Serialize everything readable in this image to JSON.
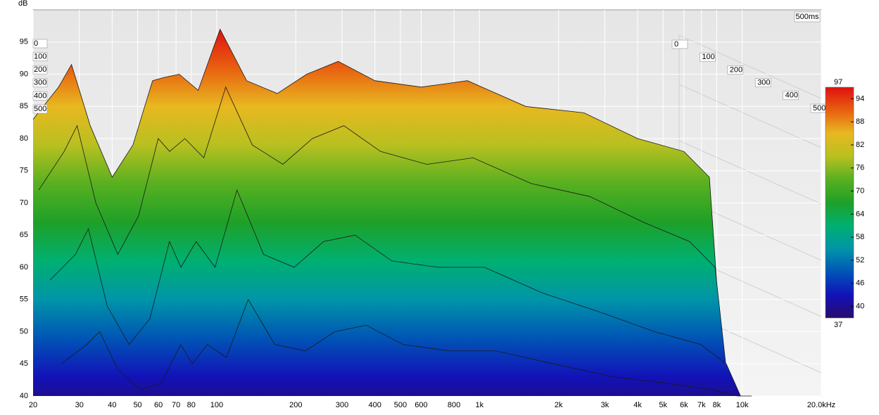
{
  "chart_data": {
    "type": "waterfall",
    "y_label": "dB",
    "depth_label": "500ms",
    "xlim": [
      20,
      20000
    ],
    "log_x": true,
    "xticks": [
      20,
      30,
      40,
      50,
      60,
      70,
      80,
      100,
      200,
      300,
      400,
      500,
      600,
      800,
      {
        "value": 1000,
        "label": "1k"
      },
      {
        "value": 2000,
        "label": "2k"
      },
      {
        "value": 3000,
        "label": "3k"
      },
      {
        "value": 4000,
        "label": "4k"
      },
      {
        "value": 5000,
        "label": "5k"
      },
      {
        "value": 6000,
        "label": "6k"
      },
      {
        "value": 7000,
        "label": "7k"
      },
      {
        "value": 8000,
        "label": "8k"
      },
      {
        "value": 10000,
        "label": "10k"
      },
      {
        "value": 20000,
        "label": "20.0kHz"
      }
    ],
    "ylim": [
      40,
      100
    ],
    "yticks": [
      40,
      45,
      50,
      55,
      60,
      65,
      70,
      75,
      80,
      85,
      90,
      95
    ],
    "zlim": [
      0,
      500
    ],
    "zticks": [
      0,
      100,
      200,
      300,
      400,
      500
    ],
    "grid": true,
    "x": [
      20,
      25,
      28,
      33,
      40,
      48,
      57,
      63,
      72,
      85,
      103,
      130,
      170,
      220,
      290,
      400,
      600,
      900,
      1500,
      2500,
      4000,
      6000,
      7500,
      8500
    ],
    "slices": [
      {
        "time": 0,
        "values": [
          83,
          88,
          91.5,
          82,
          74,
          79,
          89,
          89.5,
          90,
          87.5,
          97,
          89,
          87,
          90,
          92,
          89,
          88,
          89,
          85,
          84,
          80,
          78,
          74,
          42
        ]
      },
      {
        "time": 100,
        "values": [
          72,
          78,
          82,
          70,
          62,
          68,
          80,
          78,
          80,
          77,
          88,
          79,
          76,
          80,
          82,
          78,
          76,
          77,
          73,
          71,
          67,
          64,
          60,
          40
        ]
      },
      {
        "time": 300,
        "values": [
          58,
          62,
          66,
          54,
          48,
          52,
          64,
          60,
          64,
          60,
          72,
          62,
          60,
          64,
          65,
          61,
          60,
          60,
          56,
          53,
          50,
          48,
          45,
          40
        ]
      },
      {
        "time": 500,
        "values": [
          45,
          48,
          50,
          44,
          41,
          42,
          48,
          45,
          48,
          46,
          55,
          48,
          47,
          50,
          51,
          48,
          47,
          47,
          45,
          43,
          42,
          41,
          40,
          40
        ]
      }
    ],
    "colorbar": {
      "range": [
        37,
        97
      ],
      "ticks": [
        40,
        46,
        52,
        58,
        64,
        70,
        76,
        82,
        88,
        94
      ],
      "colors": [
        "#2a0a6e",
        "#1212b8",
        "#0055b5",
        "#0095a8",
        "#00b070",
        "#1ea028",
        "#58b020",
        "#b8c020",
        "#e8b820",
        "#e86010",
        "#e01010"
      ]
    }
  }
}
